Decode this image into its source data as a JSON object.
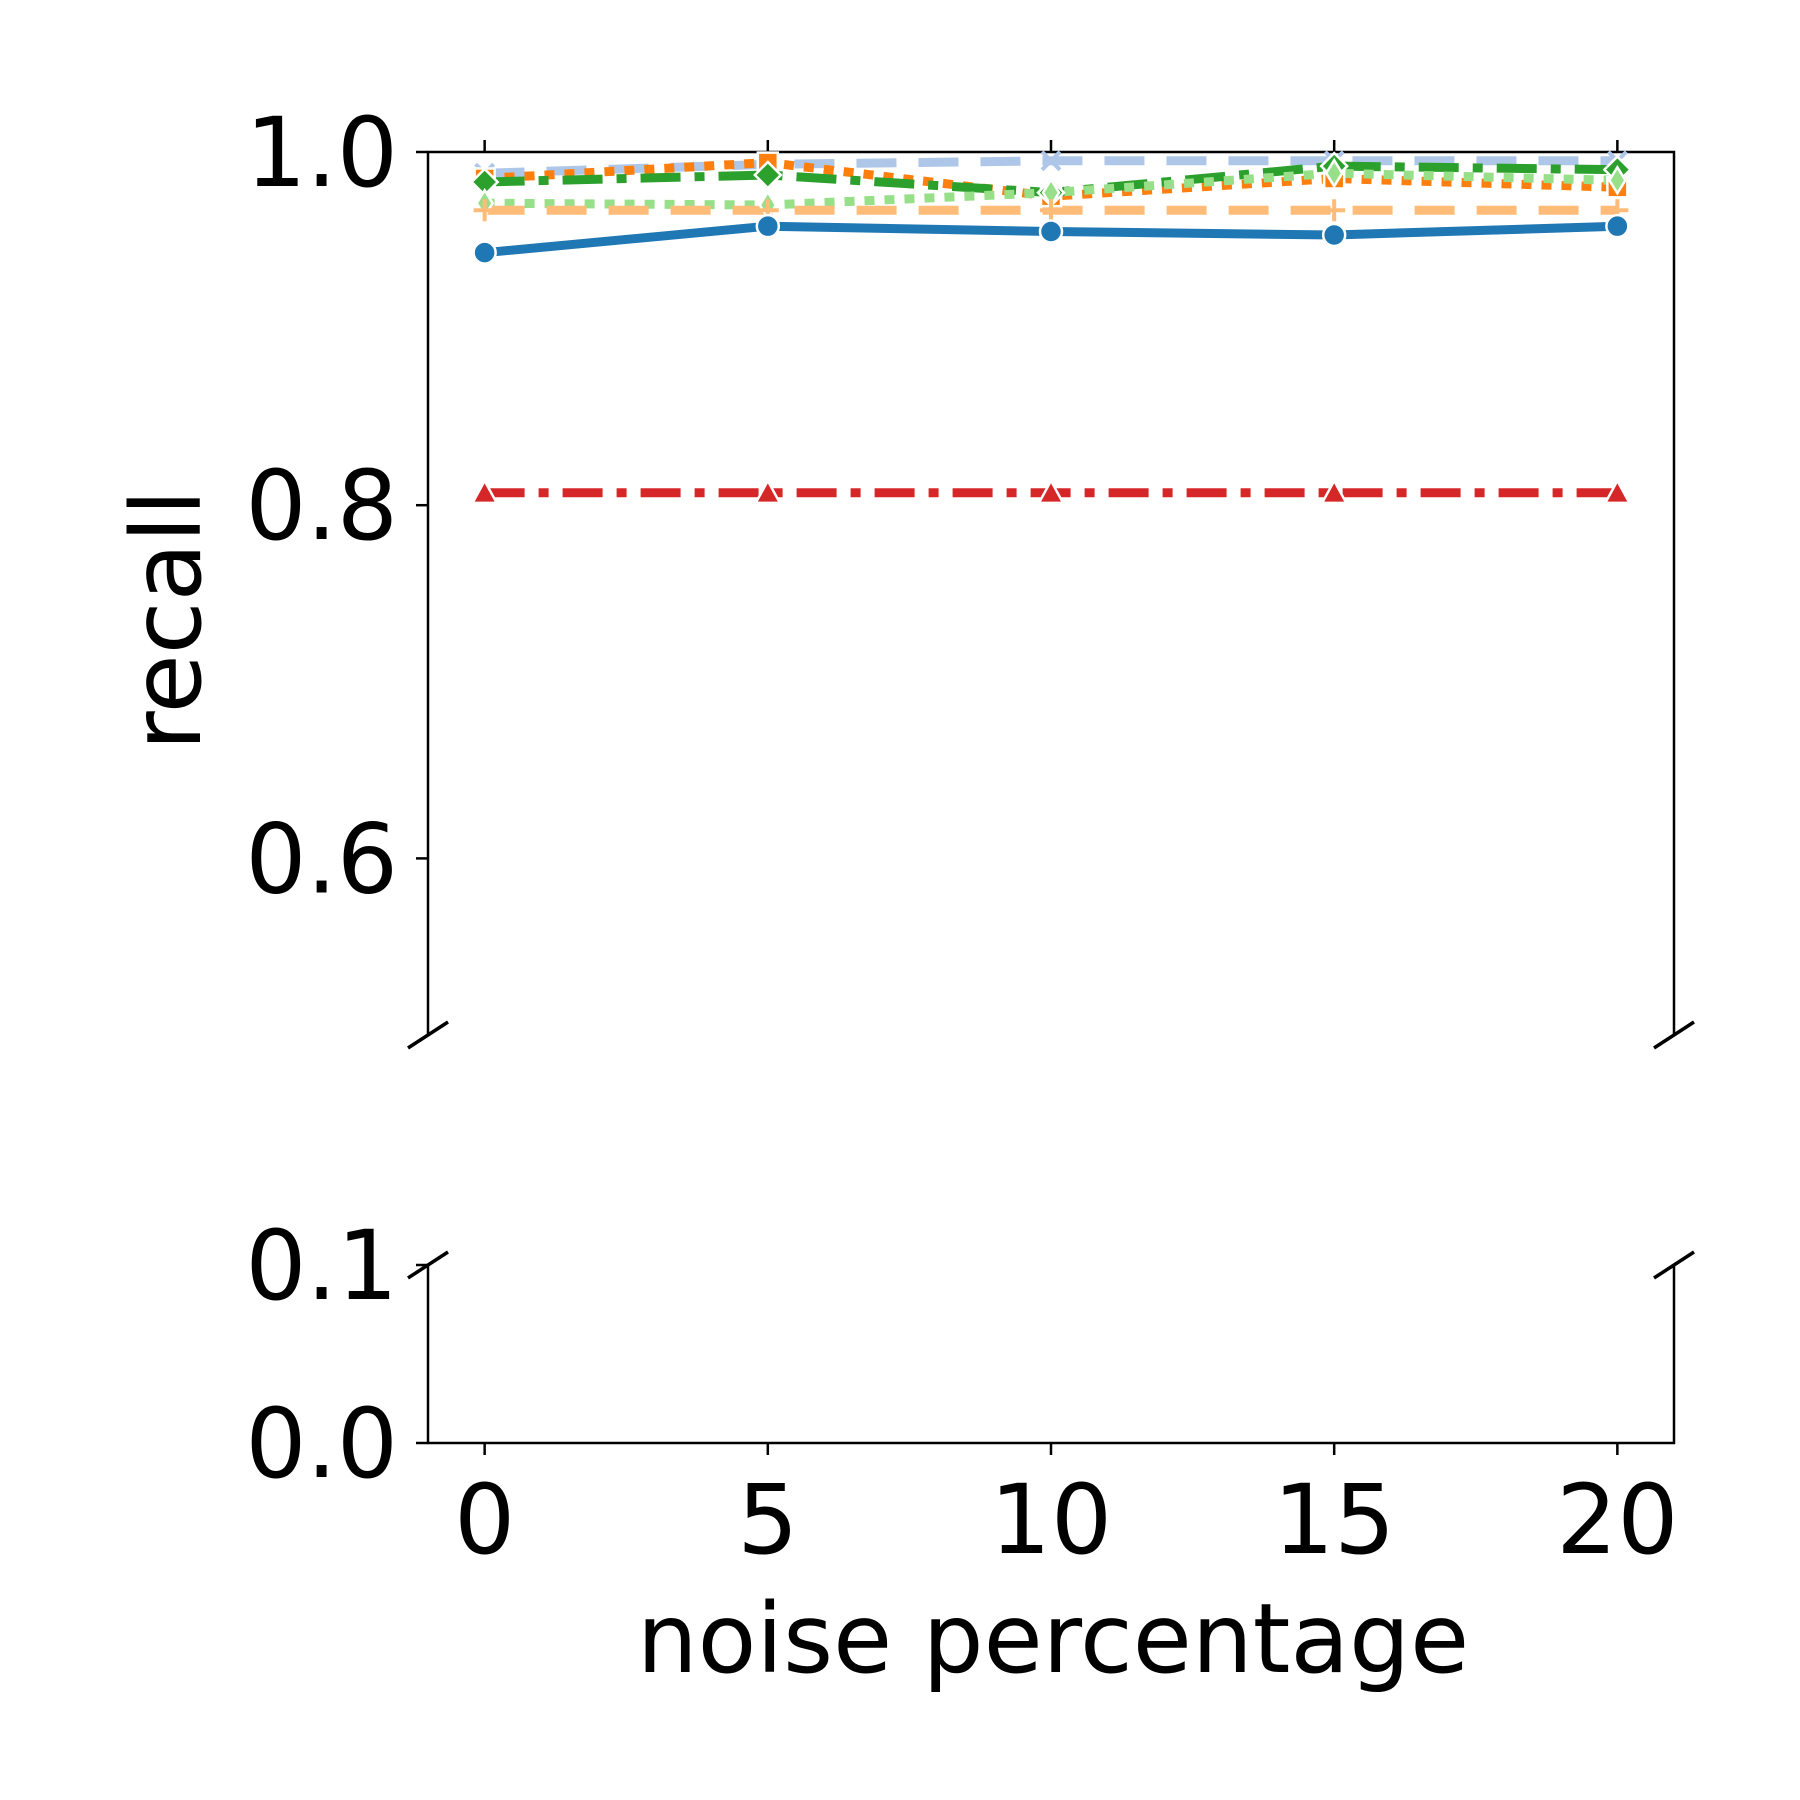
{
  "chart_data": {
    "type": "line",
    "xlabel": "noise percentage",
    "ylabel": "recall",
    "x": [
      0,
      5,
      10,
      15,
      20
    ],
    "xticks": [
      "0",
      "5",
      "10",
      "15",
      "20"
    ],
    "xlim": [
      -1,
      21
    ],
    "broken_axis": {
      "top_ylim": [
        0.5,
        1.0
      ],
      "top_yticks": [
        "1.0",
        "0.8",
        "0.6"
      ],
      "bottom_ylim": [
        0.0,
        0.1
      ],
      "bottom_yticks": [
        "0.1",
        "0.0"
      ]
    },
    "grid": false,
    "legend": "none",
    "series": [
      {
        "color": "#aec7e8",
        "dash": "dashed",
        "marker": "x",
        "values": [
          0.988,
          0.993,
          0.995,
          0.995,
          0.995
        ]
      },
      {
        "color": "#ff7f0e",
        "dash": "dotted",
        "marker": "square",
        "values": [
          0.985,
          0.994,
          0.975,
          0.985,
          0.98
        ]
      },
      {
        "color": "#2ca02c",
        "dash": "dashdot",
        "marker": "diamond",
        "values": [
          0.983,
          0.987,
          0.977,
          0.992,
          0.99
        ]
      },
      {
        "color": "#98df8a",
        "dash": "dotted",
        "marker": "thin_diamond",
        "values": [
          0.971,
          0.97,
          0.977,
          0.988,
          0.984
        ]
      },
      {
        "color": "#ffbb78",
        "dash": "dashed",
        "marker": "plus",
        "values": [
          0.967,
          0.967,
          0.967,
          0.967,
          0.967
        ]
      },
      {
        "color": "#1f77b4",
        "dash": "solid",
        "marker": "circle",
        "values": [
          0.943,
          0.958,
          0.955,
          0.953,
          0.958
        ]
      },
      {
        "color": "#d62728",
        "dash": "dashdot",
        "marker": "triangle",
        "values": [
          0.807,
          0.807,
          0.807,
          0.807,
          0.807
        ]
      }
    ]
  }
}
